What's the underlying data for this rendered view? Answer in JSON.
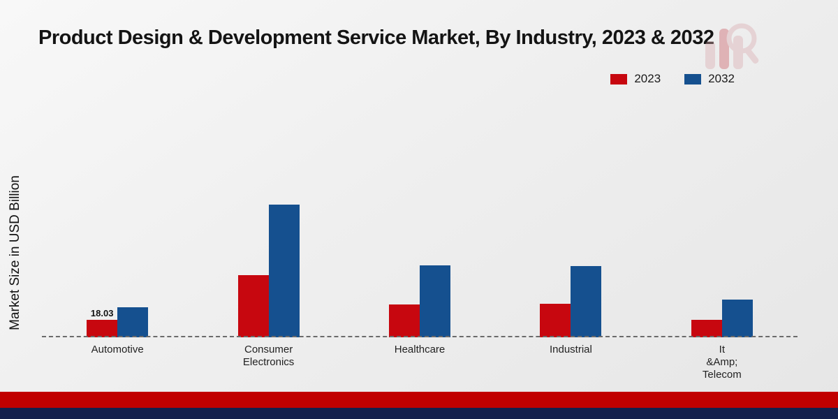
{
  "header": {
    "title": "Product Design & Development Service Market, By Industry, 2023 & 2032"
  },
  "legend": {
    "items": [
      {
        "label": "2023",
        "color": "#c7070f"
      },
      {
        "label": "2032",
        "color": "#15508f"
      }
    ]
  },
  "axes": {
    "ylabel": "Market Size in USD Billion"
  },
  "chart_data": {
    "type": "bar",
    "title": "Product Design & Development Service Market, By Industry, 2023 & 2032",
    "ylabel": "Market Size in USD Billion",
    "xlabel": "",
    "categories": [
      "Automotive",
      "Consumer\nElectronics",
      "Healthcare",
      "Industrial",
      "It\n&Amp;\nTelecom"
    ],
    "series": [
      {
        "name": "2023",
        "color": "#c7070f",
        "values": [
          18.03,
          65,
          34,
          35,
          18
        ]
      },
      {
        "name": "2032",
        "color": "#15508f",
        "values": [
          31,
          138,
          75,
          74,
          39
        ]
      }
    ],
    "value_labels": [
      {
        "series_index": 0,
        "category_index": 0,
        "text": "18.03"
      }
    ],
    "ylim": [
      0,
      150
    ],
    "grid": false,
    "baseline_style": "dashed",
    "legend_position": "top-right",
    "units": "USD Billion"
  },
  "footer": {
    "red_band_color": "#c10000",
    "navy_band_color": "#14204d"
  }
}
